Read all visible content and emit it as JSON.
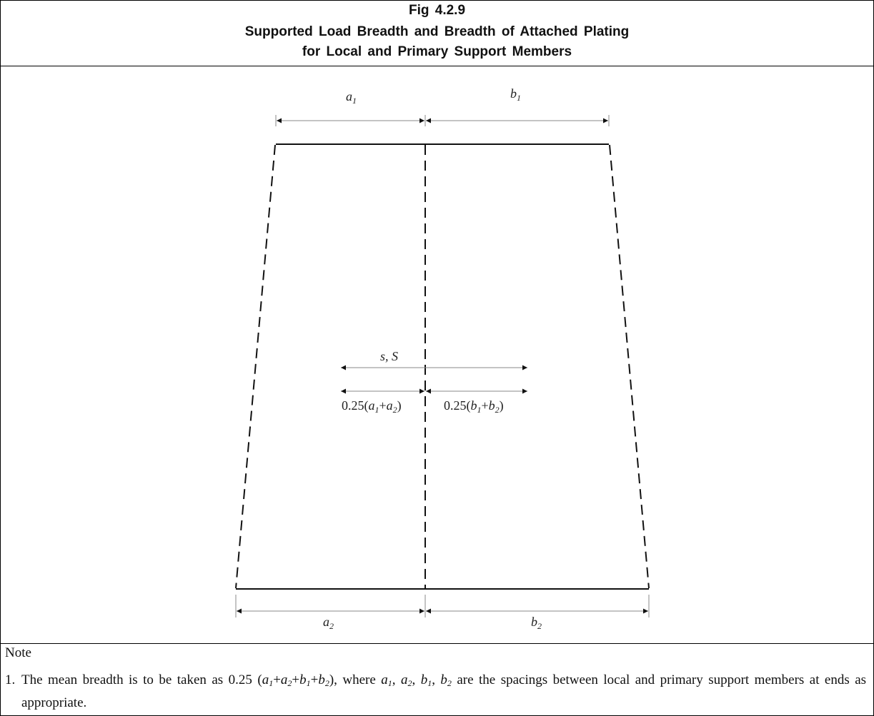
{
  "title": {
    "line1": "Fig 4.2.9",
    "line2": "Supported Load Breadth and Breadth of Attached Plating",
    "line3": "for Local and Primary Support Members"
  },
  "labels": {
    "a1_base": "a",
    "a1_sub": "1",
    "b1_base": "b",
    "b1_sub": "1",
    "a2_base": "a",
    "a2_sub": "2",
    "b2_base": "b",
    "b2_sub": "2",
    "s_S": "s, S",
    "mid_left_prefix": "0.25(",
    "mid_left_a": "a",
    "mid_left_sub1": "1",
    "mid_left_plus": "+",
    "mid_left_sub2": "2",
    "mid_left_close": ")",
    "mid_right_prefix": "0.25(",
    "mid_right_b": "b",
    "mid_right_sub1": "1",
    "mid_right_plus": "+",
    "mid_right_sub2": "2",
    "mid_right_close": ")"
  },
  "note": {
    "heading": "Note",
    "item_number": "1.",
    "text_part1": "The mean breadth is to be taken as 0.25 (",
    "formula_a": "a",
    "formula_sub1": "1",
    "formula_plus1": "+",
    "formula_a2": "a",
    "formula_sub2": "2",
    "formula_plus2": "+",
    "formula_b1": "b",
    "formula_sub3": "1",
    "formula_plus3": "+",
    "formula_b2": "b",
    "formula_sub4": "2",
    "text_part2": "), where ",
    "list_a1": "a",
    "list_sub_a1": "1",
    "list_sep1": ", ",
    "list_a2": "a",
    "list_sub_a2": "2",
    "list_sep2": ", ",
    "list_b1": "b",
    "list_sub_b1": "1",
    "list_sep3": ", ",
    "list_b2": "b",
    "list_sub_b2": "2",
    "text_part3": " are the spacings between local and primary support members at ends as appropriate."
  }
}
